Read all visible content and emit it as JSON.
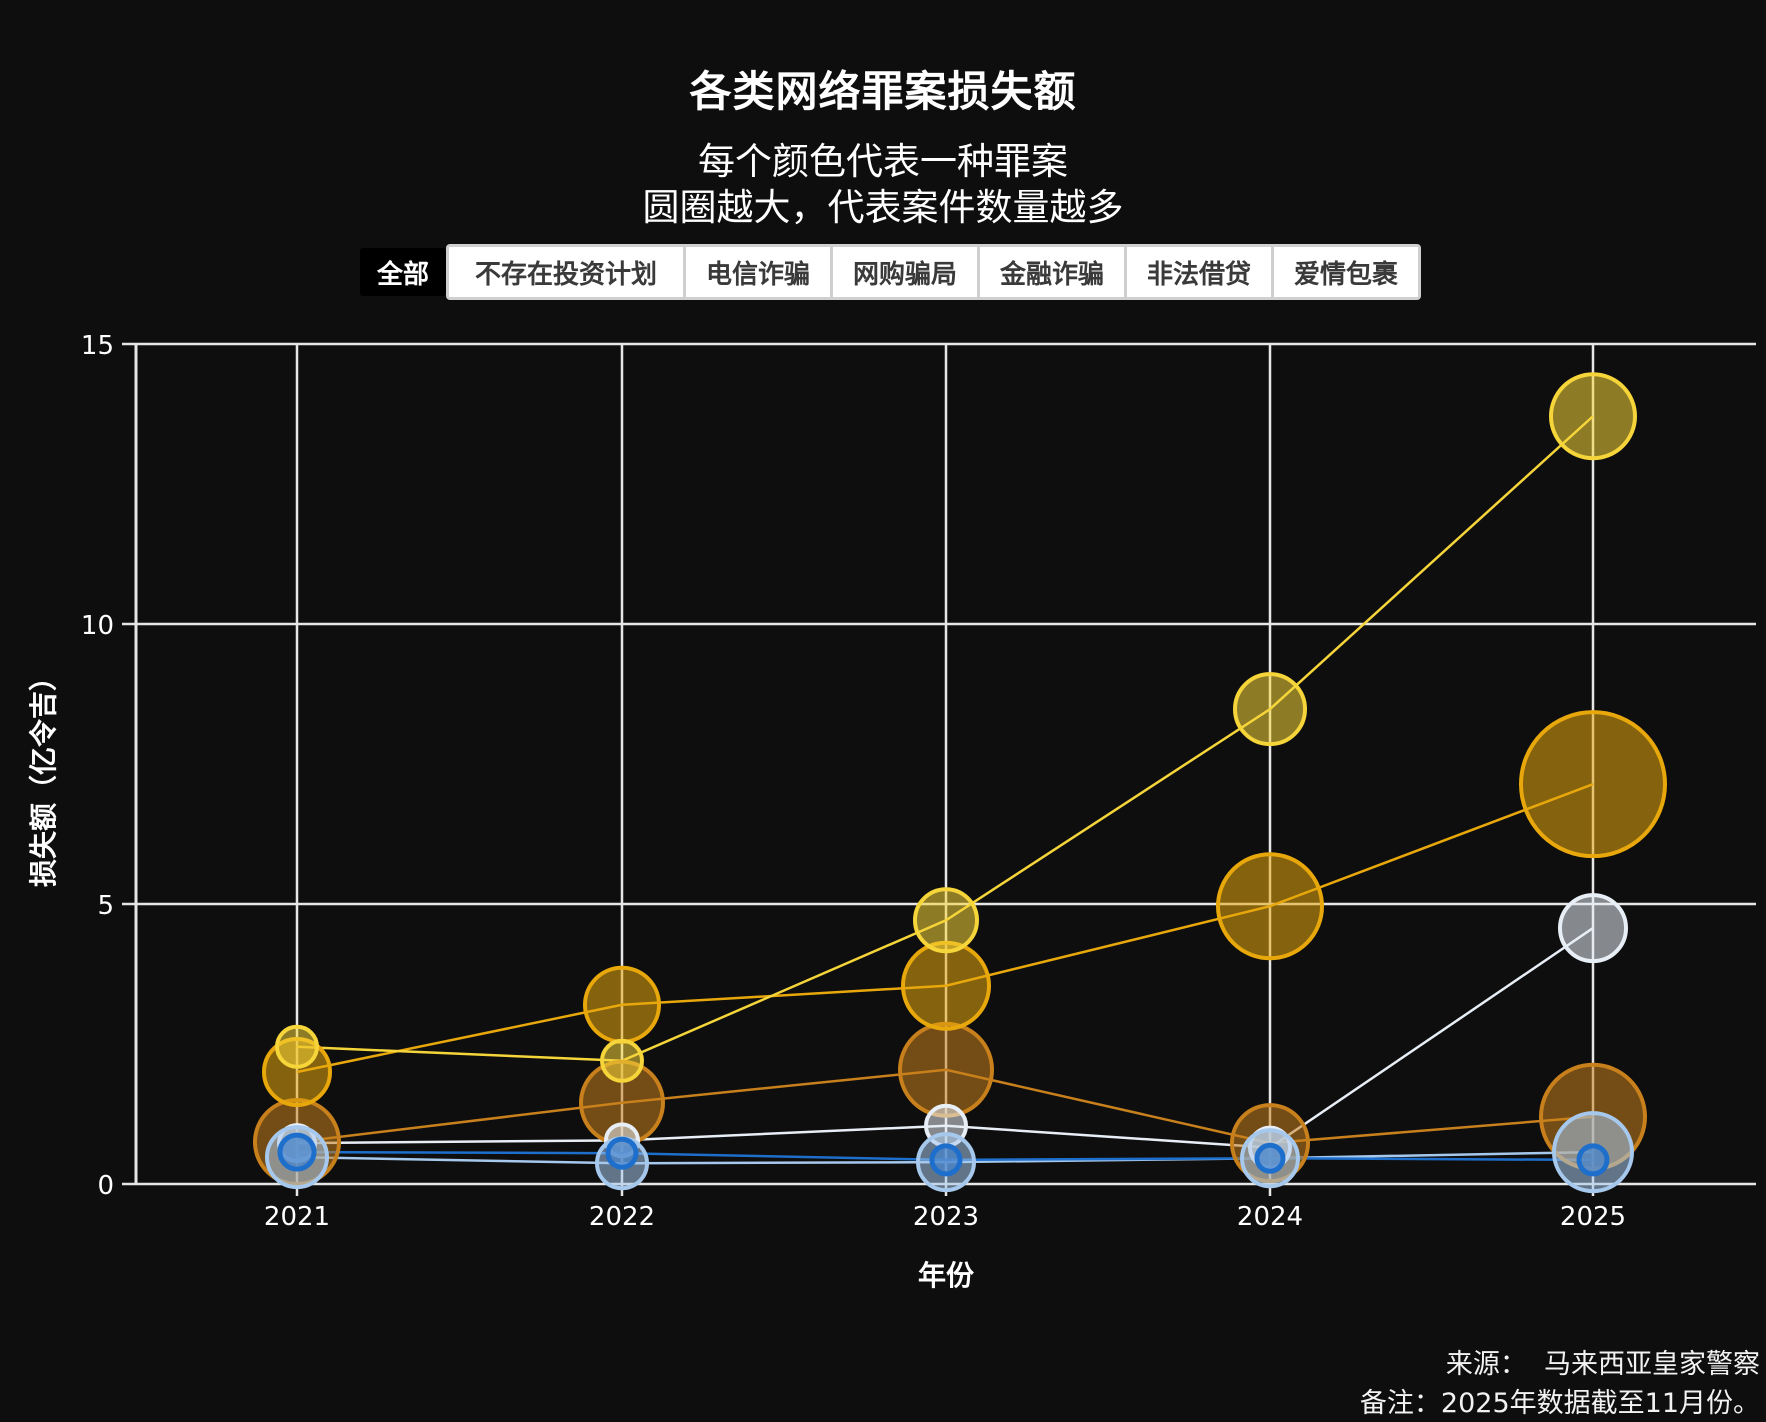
{
  "title": "各类网络罪案损失额",
  "subtitle_line1": "每个颜色代表一种罪案",
  "subtitle_line2": "圆圈越大，代表案件数量越多",
  "tabs": {
    "active": "全部",
    "items": [
      "不存在投资计划",
      "电信诈骗",
      "网购骗局",
      "金融诈骗",
      "非法借贷",
      "爱情包裹"
    ]
  },
  "footer": {
    "source": "来源：  马来西亚皇家警察",
    "note": "备注：2025年数据截至11月份。"
  },
  "chart_data": {
    "type": "scatter",
    "title": "各类网络罪案损失额",
    "subtitle": "每个颜色代表一种罪案；圆圈越大，代表案件数量越多",
    "xlabel": "年份",
    "ylabel": "损失额（亿令吉）",
    "x": [
      2021,
      2022,
      2023,
      2024,
      2025
    ],
    "ylim": [
      0,
      15
    ],
    "yticks": [
      0,
      5,
      10,
      15
    ],
    "grid": true,
    "legend": "none (filter buttons above chart)",
    "series": [
      {
        "name": "series-bright-yellow",
        "stroke": "#F5D53A",
        "fill": "#F5D53A",
        "values": [
          2.45,
          2.2,
          4.71,
          8.48,
          13.71
        ],
        "bubble_radius": [
          20,
          20,
          31,
          35,
          42
        ]
      },
      {
        "name": "series-gold",
        "stroke": "#E8A80C",
        "fill": "#E8A80C",
        "values": [
          2.0,
          3.2,
          3.54,
          4.96,
          7.14
        ],
        "bubble_radius": [
          33,
          37,
          43,
          52,
          72
        ]
      },
      {
        "name": "series-dark-orange",
        "stroke": "#C8801C",
        "fill": "#C8801C",
        "values": [
          0.75,
          1.45,
          2.04,
          0.73,
          1.2
        ],
        "bubble_radius": [
          42,
          41,
          46,
          38,
          52
        ]
      },
      {
        "name": "series-white",
        "stroke": "#E8EEF5",
        "fill": "#E8EEF5",
        "values": [
          0.73,
          0.78,
          1.04,
          0.65,
          4.57
        ],
        "bubble_radius": [
          18,
          16,
          20,
          20,
          33
        ]
      },
      {
        "name": "series-light-blue",
        "stroke": "#A6C8EC",
        "fill": "#A6C8EC",
        "values": [
          0.48,
          0.37,
          0.39,
          0.46,
          0.57
        ],
        "bubble_radius": [
          30,
          25,
          28,
          28,
          39
        ]
      },
      {
        "name": "series-dark-blue",
        "stroke": "#1E6FCC",
        "fill": "#4A86CC",
        "values": [
          0.57,
          0.55,
          0.43,
          0.46,
          0.43
        ],
        "bubble_radius": [
          17,
          14,
          14,
          13,
          14
        ]
      }
    ]
  },
  "colors": {
    "background": "#0e0e0e",
    "grid": "#e6e6e6",
    "text": "#ffffff"
  }
}
